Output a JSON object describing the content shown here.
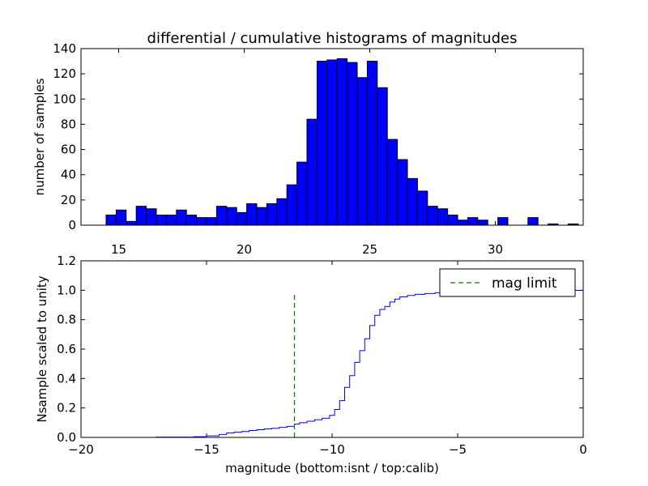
{
  "chart_data": [
    {
      "type": "bar",
      "title": "differential / cumulative histograms of magnitudes",
      "xlabel": "",
      "ylabel": "number of samples",
      "xlim": [
        13.5,
        33.5
      ],
      "ylim": [
        0,
        140
      ],
      "xticks": [
        15,
        20,
        25,
        30
      ],
      "yticks": [
        0,
        20,
        40,
        60,
        80,
        100,
        120,
        140
      ],
      "bar_color": "#0000ff",
      "bin_width": 0.4,
      "bins": [
        {
          "x": 14.5,
          "v": 8
        },
        {
          "x": 14.9,
          "v": 12
        },
        {
          "x": 15.3,
          "v": 3
        },
        {
          "x": 15.7,
          "v": 15
        },
        {
          "x": 16.1,
          "v": 13
        },
        {
          "x": 16.5,
          "v": 8
        },
        {
          "x": 16.9,
          "v": 8
        },
        {
          "x": 17.3,
          "v": 12
        },
        {
          "x": 17.7,
          "v": 8
        },
        {
          "x": 18.1,
          "v": 6
        },
        {
          "x": 18.5,
          "v": 6
        },
        {
          "x": 18.9,
          "v": 15
        },
        {
          "x": 19.3,
          "v": 14
        },
        {
          "x": 19.7,
          "v": 10
        },
        {
          "x": 20.1,
          "v": 17
        },
        {
          "x": 20.5,
          "v": 14
        },
        {
          "x": 20.9,
          "v": 17
        },
        {
          "x": 21.3,
          "v": 21
        },
        {
          "x": 21.7,
          "v": 32
        },
        {
          "x": 22.1,
          "v": 50
        },
        {
          "x": 22.5,
          "v": 84
        },
        {
          "x": 22.9,
          "v": 130
        },
        {
          "x": 23.3,
          "v": 131
        },
        {
          "x": 23.7,
          "v": 132
        },
        {
          "x": 24.1,
          "v": 129
        },
        {
          "x": 24.5,
          "v": 117
        },
        {
          "x": 24.9,
          "v": 130
        },
        {
          "x": 25.3,
          "v": 109
        },
        {
          "x": 25.7,
          "v": 68
        },
        {
          "x": 26.1,
          "v": 52
        },
        {
          "x": 26.5,
          "v": 37
        },
        {
          "x": 26.9,
          "v": 27
        },
        {
          "x": 27.3,
          "v": 15
        },
        {
          "x": 27.7,
          "v": 13
        },
        {
          "x": 28.1,
          "v": 8
        },
        {
          "x": 28.5,
          "v": 4
        },
        {
          "x": 28.9,
          "v": 6
        },
        {
          "x": 29.3,
          "v": 4
        },
        {
          "x": 29.7,
          "v": 0
        },
        {
          "x": 30.1,
          "v": 6
        },
        {
          "x": 30.5,
          "v": 0
        },
        {
          "x": 30.9,
          "v": 0
        },
        {
          "x": 31.3,
          "v": 6
        },
        {
          "x": 31.7,
          "v": 0
        },
        {
          "x": 32.1,
          "v": 1
        },
        {
          "x": 32.5,
          "v": 0
        },
        {
          "x": 32.9,
          "v": 1
        }
      ]
    },
    {
      "type": "line",
      "title": "",
      "xlabel": "magnitude (bottom:isnt / top:calib)",
      "ylabel": "Nsample scaled to unity",
      "xlim": [
        -20,
        0
      ],
      "ylim": [
        0,
        1.2
      ],
      "xticks": [
        "−20",
        "−15",
        "−10",
        "−5",
        "0"
      ],
      "xtick_values": [
        -20,
        -15,
        -10,
        -5,
        0
      ],
      "yticks": [
        "0.0",
        "0.2",
        "0.4",
        "0.6",
        "0.8",
        "1.0",
        "1.2"
      ],
      "ytick_values": [
        0,
        0.2,
        0.4,
        0.6,
        0.8,
        1.0,
        1.2
      ],
      "legend": {
        "label": "mag limit",
        "position": "top-right"
      },
      "limit_line": {
        "x": -11.5,
        "y_range": [
          0,
          0.97
        ],
        "color": "#008000",
        "style": "dashed"
      },
      "step_color": "#0000ff",
      "series": [
        {
          "style": "step",
          "points": [
            [
              -19.5,
              0.0
            ],
            [
              -17.0,
              0.002
            ],
            [
              -15.5,
              0.005
            ],
            [
              -15.0,
              0.01
            ],
            [
              -14.5,
              0.02
            ],
            [
              -14.2,
              0.03
            ],
            [
              -13.9,
              0.035
            ],
            [
              -13.6,
              0.04
            ],
            [
              -13.3,
              0.047
            ],
            [
              -13.0,
              0.052
            ],
            [
              -12.7,
              0.058
            ],
            [
              -12.4,
              0.062
            ],
            [
              -12.1,
              0.068
            ],
            [
              -11.8,
              0.075
            ],
            [
              -11.5,
              0.09
            ],
            [
              -11.3,
              0.1
            ],
            [
              -11.0,
              0.11
            ],
            [
              -10.7,
              0.12
            ],
            [
              -10.4,
              0.13
            ],
            [
              -10.1,
              0.15
            ],
            [
              -9.9,
              0.19
            ],
            [
              -9.7,
              0.25
            ],
            [
              -9.5,
              0.34
            ],
            [
              -9.3,
              0.42
            ],
            [
              -9.1,
              0.51
            ],
            [
              -8.9,
              0.59
            ],
            [
              -8.7,
              0.67
            ],
            [
              -8.5,
              0.76
            ],
            [
              -8.3,
              0.83
            ],
            [
              -8.1,
              0.87
            ],
            [
              -7.9,
              0.89
            ],
            [
              -7.7,
              0.92
            ],
            [
              -7.5,
              0.94
            ],
            [
              -7.3,
              0.955
            ],
            [
              -7.0,
              0.965
            ],
            [
              -6.7,
              0.972
            ],
            [
              -6.3,
              0.978
            ],
            [
              -5.9,
              0.983
            ],
            [
              -5.5,
              0.988
            ],
            [
              -5.0,
              0.992
            ],
            [
              -4.5,
              0.995
            ],
            [
              -4.0,
              0.997
            ],
            [
              -3.0,
              0.999
            ],
            [
              -0.05,
              1.0
            ],
            [
              0.0,
              0.0
            ]
          ]
        }
      ]
    }
  ]
}
